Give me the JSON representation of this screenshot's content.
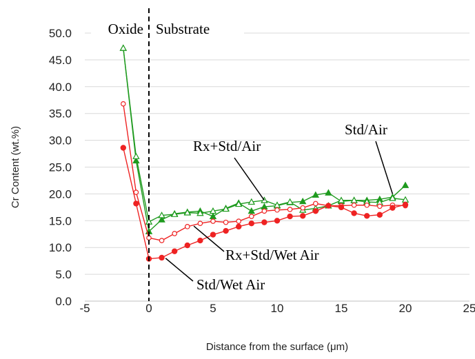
{
  "chart_data": {
    "type": "line",
    "title": "",
    "xlabel": "Distance from the surface (μm)",
    "ylabel": "Cr Content (wt.%)",
    "xlim": [
      -5,
      25
    ],
    "ylim": [
      0,
      50
    ],
    "xticks": [
      "-5",
      "0",
      "5",
      "10",
      "15",
      "20",
      "25"
    ],
    "xtick_values": [
      -5,
      0,
      5,
      10,
      15,
      20,
      25
    ],
    "yticks": [
      "0.0",
      "5.0",
      "10.0",
      "15.0",
      "20.0",
      "25.0",
      "30.0",
      "35.0",
      "40.0",
      "45.0",
      "50.0"
    ],
    "ytick_values": [
      0,
      5,
      10,
      15,
      20,
      25,
      30,
      35,
      40,
      45,
      50
    ],
    "grid": "horizontal",
    "colors": {
      "green": "#1e9a1e",
      "red": "#ee2222"
    },
    "series": [
      {
        "name": "Std/Air",
        "color": "#1e9a1e",
        "marker": "filled-triangle",
        "x": [
          -2,
          -1,
          0,
          1,
          2,
          3,
          4,
          5,
          6,
          7,
          8,
          9,
          10,
          11,
          12,
          13,
          14,
          15,
          16,
          17,
          18,
          19,
          20
        ],
        "y": [
          47.2,
          26.2,
          13.0,
          15.2,
          16.3,
          16.6,
          16.8,
          15.8,
          17.3,
          18.3,
          16.8,
          17.6,
          17.8,
          18.4,
          18.6,
          19.8,
          20.2,
          18.6,
          18.8,
          18.8,
          19.0,
          19.4,
          21.6
        ]
      },
      {
        "name": "Rx+Std/Air",
        "color": "#1e9a1e",
        "marker": "open-triangle",
        "x": [
          -2,
          -1,
          0,
          1,
          2,
          3,
          4,
          5,
          6,
          7,
          8,
          9,
          10,
          11,
          12,
          13,
          14,
          15,
          16,
          17,
          18,
          19,
          20
        ],
        "y": [
          47.2,
          27.0,
          14.8,
          16.0,
          16.2,
          16.5,
          16.4,
          16.8,
          17.2,
          18.1,
          18.5,
          18.8,
          17.9,
          18.5,
          17.0,
          17.3,
          17.8,
          18.8,
          18.8,
          18.5,
          18.4,
          19.2,
          18.9
        ]
      },
      {
        "name": "Rx+Std/Wet Air",
        "color": "#ee2222",
        "marker": "open-circle",
        "x": [
          -2,
          -1,
          0,
          1,
          2,
          3,
          4,
          5,
          6,
          7,
          8,
          9,
          10,
          11,
          12,
          13,
          14,
          15,
          16,
          17,
          18,
          19,
          20
        ],
        "y": [
          36.8,
          20.3,
          11.8,
          11.3,
          12.6,
          13.9,
          14.5,
          14.9,
          14.7,
          14.9,
          15.8,
          16.8,
          17.0,
          17.1,
          17.4,
          18.2,
          17.8,
          17.8,
          17.9,
          17.9,
          17.7,
          17.9,
          17.8
        ]
      },
      {
        "name": "Std/Wet Air",
        "color": "#ee2222",
        "marker": "filled-circle",
        "x": [
          -2,
          -1,
          0,
          1,
          2,
          3,
          4,
          5,
          6,
          7,
          8,
          9,
          10,
          11,
          12,
          13,
          14,
          15,
          16,
          17,
          18,
          19,
          20
        ],
        "y": [
          28.6,
          18.2,
          7.9,
          8.1,
          9.3,
          10.4,
          11.3,
          12.4,
          13.1,
          13.9,
          14.5,
          14.7,
          15.0,
          15.8,
          15.9,
          16.8,
          17.8,
          17.5,
          16.4,
          15.9,
          16.1,
          17.4,
          18.0
        ]
      }
    ],
    "region_labels": {
      "left": "Oxide",
      "right": "Substrate"
    },
    "region_divider_x": 0,
    "annotations": [
      {
        "text": "Rx+Std/Air",
        "series": "Rx+Std/Air",
        "point_x": 9,
        "point_y": 18.8
      },
      {
        "text": "Std/Air",
        "series": "Std/Air",
        "point_x": 19,
        "point_y": 20.0
      },
      {
        "text": "Rx+Std/Wet Air",
        "series": "Rx+Std/Wet Air",
        "point_x": 3.5,
        "point_y": 14.0
      },
      {
        "text": "Std/Wet Air",
        "series": "Std/Wet Air",
        "point_x": 1.3,
        "point_y": 8.0
      }
    ]
  }
}
